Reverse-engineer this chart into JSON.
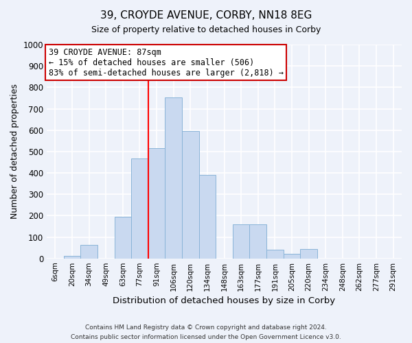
{
  "title": "39, CROYDE AVENUE, CORBY, NN18 8EG",
  "subtitle": "Size of property relative to detached houses in Corby",
  "xlabel": "Distribution of detached houses by size in Corby",
  "ylabel": "Number of detached properties",
  "bar_labels": [
    "6sqm",
    "20sqm",
    "34sqm",
    "49sqm",
    "63sqm",
    "77sqm",
    "91sqm",
    "106sqm",
    "120sqm",
    "134sqm",
    "148sqm",
    "163sqm",
    "177sqm",
    "191sqm",
    "205sqm",
    "220sqm",
    "234sqm",
    "248sqm",
    "262sqm",
    "277sqm",
    "291sqm"
  ],
  "bar_values": [
    0,
    13,
    62,
    0,
    196,
    469,
    515,
    754,
    596,
    390,
    0,
    160,
    160,
    42,
    20,
    45,
    0,
    0,
    0,
    0,
    0
  ],
  "bar_color": "#c9d9f0",
  "bar_edge_color": "#8ab4d8",
  "vline_x_index": 6,
  "vline_color": "red",
  "annotation_title": "39 CROYDE AVENUE: 87sqm",
  "annotation_line1": "← 15% of detached houses are smaller (506)",
  "annotation_line2": "83% of semi-detached houses are larger (2,818) →",
  "annotation_box_color": "#ffffff",
  "annotation_box_edge": "#cc0000",
  "ylim": [
    0,
    1000
  ],
  "yticks": [
    0,
    100,
    200,
    300,
    400,
    500,
    600,
    700,
    800,
    900,
    1000
  ],
  "footer1": "Contains HM Land Registry data © Crown copyright and database right 2024.",
  "footer2": "Contains public sector information licensed under the Open Government Licence v3.0.",
  "background_color": "#eef2fa",
  "grid_color": "#d0d8e8"
}
